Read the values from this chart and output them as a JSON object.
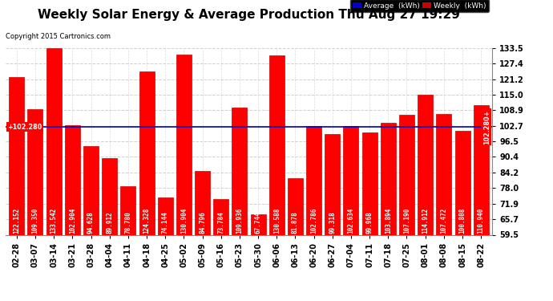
{
  "title": "Weekly Solar Energy & Average Production Thu Aug 27 19:29",
  "copyright": "Copyright 2015 Cartronics.com",
  "categories": [
    "02-28",
    "03-07",
    "03-14",
    "03-21",
    "03-28",
    "04-04",
    "04-11",
    "04-18",
    "04-25",
    "05-02",
    "05-09",
    "05-16",
    "05-23",
    "05-30",
    "06-06",
    "06-13",
    "06-20",
    "06-27",
    "07-04",
    "07-11",
    "07-18",
    "07-25",
    "08-01",
    "08-08",
    "08-15",
    "08-22"
  ],
  "values": [
    122.152,
    109.35,
    133.542,
    102.904,
    94.628,
    89.912,
    78.78,
    124.328,
    74.144,
    130.904,
    84.796,
    73.784,
    109.936,
    67.744,
    130.588,
    81.878,
    102.786,
    99.318,
    102.634,
    99.968,
    103.894,
    107.19,
    114.912,
    107.472,
    100.808,
    110.94
  ],
  "bar_color": "#ff0000",
  "average": 102.28,
  "avg_label_left": "+102.280",
  "avg_label_right": "102.280+",
  "average_line_color": "#0000cc",
  "ylim_min": 59.5,
  "ylim_max": 133.5,
  "yticks": [
    59.5,
    65.7,
    71.9,
    78.0,
    84.2,
    90.4,
    96.5,
    102.7,
    108.9,
    115.0,
    121.2,
    127.4,
    133.5
  ],
  "background_color": "#ffffff",
  "grid_color": "#cccccc",
  "title_fontsize": 11,
  "bar_value_fontsize": 5.5,
  "axis_label_fontsize": 7,
  "legend_avg_color": "#0000cc",
  "legend_weekly_color": "#cc0000",
  "bar_bottom": 59.5
}
